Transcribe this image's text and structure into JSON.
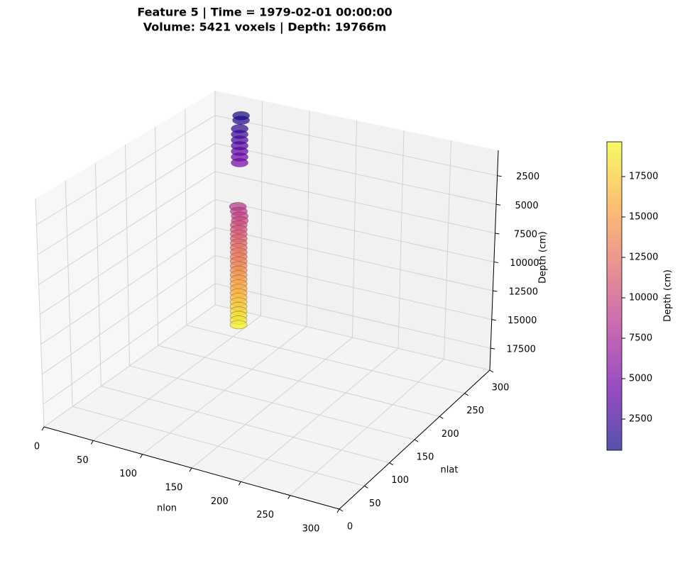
{
  "chart_data": {
    "type": "scatter3d",
    "title": "Feature 5 | Time = 1979-02-01 00:00:00",
    "subtitle": "Volume: 5421 voxels | Depth: 19766m",
    "xlabel": "nlon",
    "ylabel": "nlat",
    "zlabel": "Depth (cm)",
    "xlim": [
      0,
      300
    ],
    "ylim": [
      0,
      300
    ],
    "zlim": [
      19400,
      300
    ],
    "xticks": [
      0,
      50,
      100,
      150,
      200,
      250,
      300
    ],
    "yticks": [
      0,
      50,
      100,
      150,
      200,
      250,
      300
    ],
    "zticks": [
      2500,
      5000,
      7500,
      10000,
      12500,
      15000,
      17500
    ],
    "grid": true,
    "x": [
      45,
      45,
      46,
      46,
      46,
      46,
      46,
      46,
      46,
      43,
      44,
      45,
      45,
      44,
      44,
      44,
      44,
      44,
      44,
      44,
      44,
      44,
      44,
      44,
      44,
      44,
      44,
      44,
      44,
      44,
      44,
      44,
      44,
      44,
      44,
      44
    ],
    "y": [
      272,
      272,
      268,
      268,
      268,
      268,
      268,
      268,
      268,
      270,
      270,
      270,
      270,
      270,
      270,
      270,
      270,
      270,
      270,
      270,
      270,
      270,
      270,
      270,
      270,
      270,
      270,
      270,
      270,
      270,
      270,
      270,
      270,
      270,
      270,
      270
    ],
    "z": [
      800,
      1200,
      1800,
      2300,
      2800,
      3300,
      3800,
      4300,
      4800,
      8800,
      9200,
      9600,
      10000,
      10400,
      10800,
      11200,
      11600,
      12000,
      12400,
      12800,
      13200,
      13600,
      14000,
      14400,
      14800,
      15200,
      15600,
      16000,
      16400,
      16800,
      17200,
      17600,
      18000,
      18400,
      18800,
      19200
    ],
    "colormap": [
      "#0d0887",
      "#6a00a8",
      "#b12a90",
      "#e16462",
      "#fca636",
      "#f0f921"
    ],
    "alpha": 0.7,
    "colorbar": {
      "label": "Depth (cm)",
      "clim": [
        570,
        19650
      ],
      "ticks": [
        2500,
        5000,
        7500,
        10000,
        12500,
        15000,
        17500
      ]
    }
  }
}
